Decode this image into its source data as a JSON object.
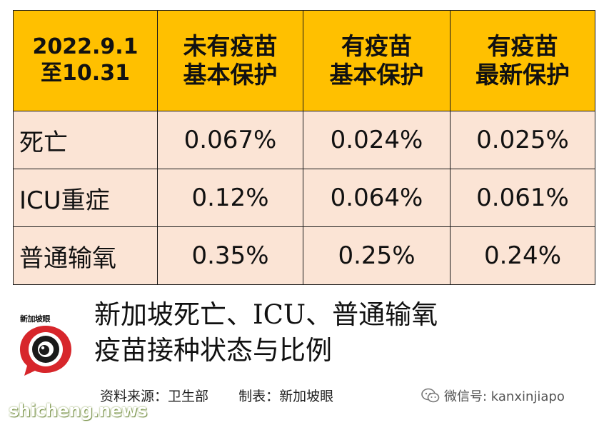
{
  "table": {
    "header": {
      "corner_line1": "2022.9.1",
      "corner_line2": "至10.31",
      "col1_line1": "未有疫苗",
      "col1_line2": "基本保护",
      "col2_line1": "有疫苗",
      "col2_line2": "基本保护",
      "col3_line1": "有疫苗",
      "col3_line2": "最新保护"
    },
    "rows": [
      {
        "label": "死亡",
        "values": [
          "0.067%",
          "0.024%",
          "0.025%"
        ]
      },
      {
        "label": "ICU重症",
        "values": [
          "0.12%",
          "0.064%",
          "0.061%"
        ]
      },
      {
        "label": "普通输氧",
        "values": [
          "0.35%",
          "0.25%",
          "0.24%"
        ]
      }
    ],
    "header_color": "#ffc000",
    "cell_color": "#fbe4d5"
  },
  "logo": {
    "text": "新加坡眼",
    "icon": "kanxinjiapo-eye-logo-icon",
    "accent_color": "#d7262b"
  },
  "title": {
    "line1": "新加坡死亡、ICU、普通输氧",
    "line2": "疫苗接种状态与比例"
  },
  "credit": {
    "source": "资料来源：卫生部",
    "maker": "制表：新加坡眼"
  },
  "wechat": {
    "icon": "wechat-icon",
    "text": "微信号: kanxinjiapo"
  },
  "watermark": {
    "text": "shicheng.news"
  }
}
